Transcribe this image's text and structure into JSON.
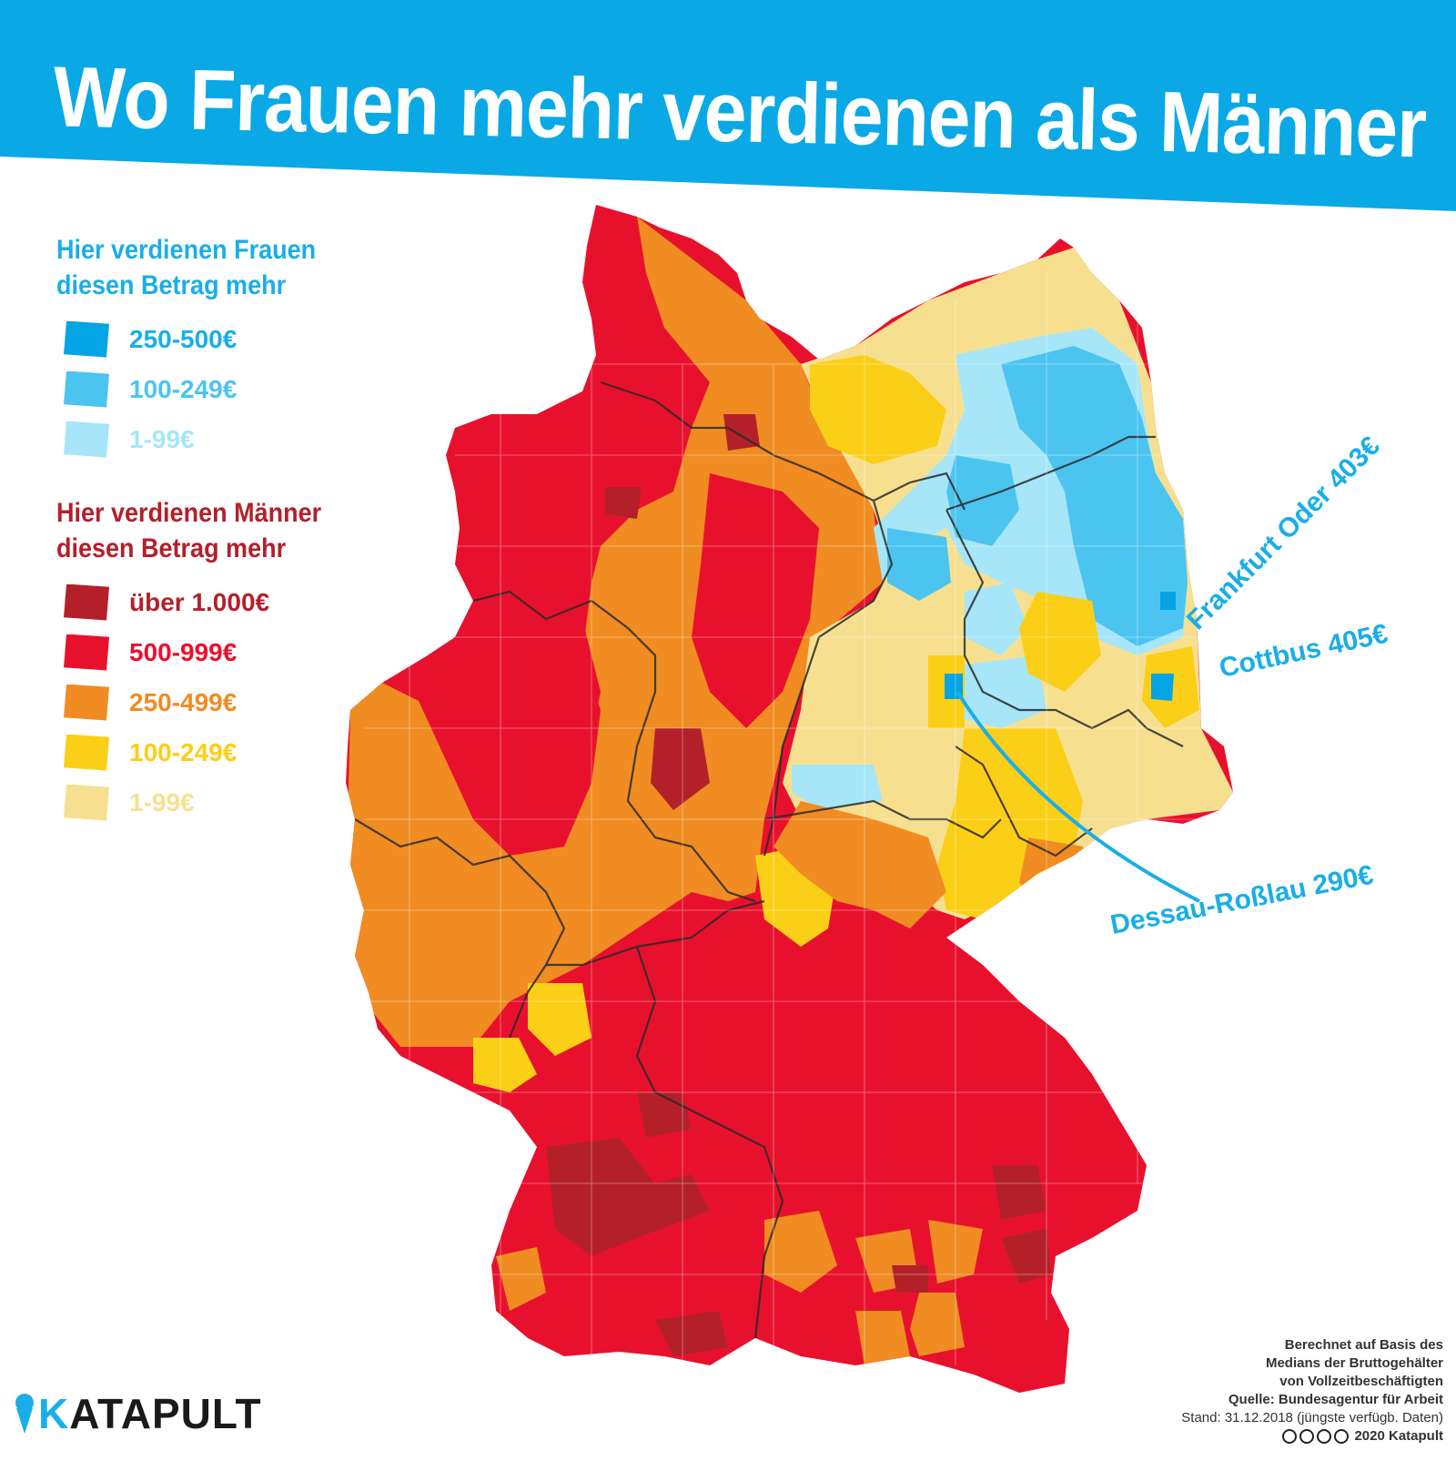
{
  "title": "Wo Frauen mehr verdienen als Männer",
  "colors": {
    "banner": "#0aa9e6",
    "women_250_500": "#05a4e4",
    "women_100_249": "#4cc4f0",
    "women_1_99": "#a6e6f8",
    "men_over_1000": "#b3202a",
    "men_500_999": "#e8112d",
    "men_250_499": "#f08c22",
    "men_100_249": "#fbcf17",
    "men_1_99": "#f6e090",
    "callout_line": "#1aaee8"
  },
  "legend": {
    "women": {
      "heading_line1": "Hier verdienen Frauen",
      "heading_line2": "diesen Betrag mehr",
      "items": [
        {
          "label": "250-500€",
          "color": "#05a4e4"
        },
        {
          "label": "100-249€",
          "color": "#4cc4f0"
        },
        {
          "label": "1-99€",
          "color": "#a6e6f8"
        }
      ]
    },
    "men": {
      "heading_line1": "Hier verdienen Männer",
      "heading_line2": "diesen Betrag mehr",
      "items": [
        {
          "label": "über 1.000€",
          "color": "#b3202a"
        },
        {
          "label": "500-999€",
          "color": "#e8112d"
        },
        {
          "label": "250-499€",
          "color": "#f08c22"
        },
        {
          "label": "100-249€",
          "color": "#fbcf17"
        },
        {
          "label": "1-99€",
          "color": "#f6e090"
        }
      ]
    }
  },
  "callouts": [
    {
      "id": "frankfurt",
      "label": "Frankfurt Oder 403€"
    },
    {
      "id": "cottbus",
      "label": "Cottbus 405€"
    },
    {
      "id": "dessau",
      "label": "Dessau-Roßlau 290€"
    }
  ],
  "source": {
    "line1": "Berechnet auf Basis des",
    "line2": "Medians der Bruttogehälter",
    "line3": "von Vollzeitbeschäftigten",
    "line4": "Quelle: Bundesagentur für Arbeit",
    "line5": "Stand: 31.12.2018 (jüngste verfügb. Daten)",
    "line6": "2020 Katapult"
  },
  "logo": {
    "text": "KATAPULT",
    "first_letter": "K",
    "rest": "ATAPULT"
  }
}
